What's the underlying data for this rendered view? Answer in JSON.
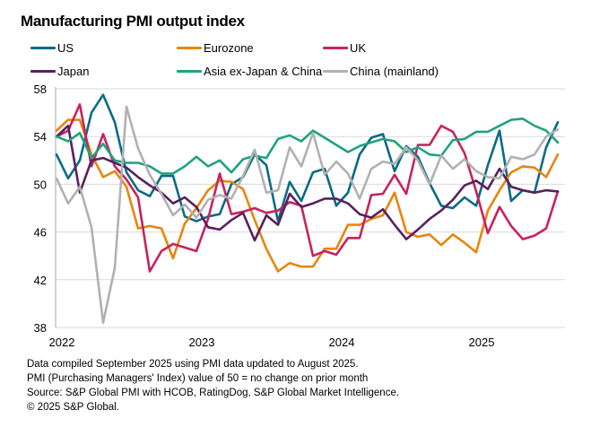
{
  "chart_data": {
    "type": "line",
    "title": "Manufacturing PMI output index",
    "xlabel": "",
    "ylabel": "",
    "ylim": [
      38,
      58
    ],
    "yticks": [
      38,
      42,
      46,
      50,
      54,
      58
    ],
    "xtick_labels": [
      "2022",
      "2023",
      "2024",
      "2025"
    ],
    "grid": true,
    "legend_position": "top",
    "x": [
      "2022-01",
      "2022-02",
      "2022-03",
      "2022-04",
      "2022-05",
      "2022-06",
      "2022-07",
      "2022-08",
      "2022-09",
      "2022-10",
      "2022-11",
      "2022-12",
      "2023-01",
      "2023-02",
      "2023-03",
      "2023-04",
      "2023-05",
      "2023-06",
      "2023-07",
      "2023-08",
      "2023-09",
      "2023-10",
      "2023-11",
      "2023-12",
      "2024-01",
      "2024-02",
      "2024-03",
      "2024-04",
      "2024-05",
      "2024-06",
      "2024-07",
      "2024-08",
      "2024-09",
      "2024-10",
      "2024-11",
      "2024-12",
      "2025-01",
      "2025-02",
      "2025-03",
      "2025-04",
      "2025-05",
      "2025-06",
      "2025-07",
      "2025-08"
    ],
    "series": [
      {
        "name": "US",
        "color": "#0a6b87",
        "values": [
          52.5,
          50.5,
          52.0,
          56.0,
          57.5,
          55.2,
          51.0,
          49.5,
          49.0,
          50.7,
          50.7,
          47.3,
          46.9,
          47.3,
          47.5,
          50.0,
          50.6,
          52.5,
          51.6,
          46.9,
          50.2,
          48.6,
          51.0,
          51.3,
          48.2,
          49.3,
          52.5,
          53.9,
          54.2,
          51.1,
          53.2,
          52.3,
          50.1,
          48.2,
          48.0,
          48.9,
          48.2,
          51.6,
          54.5,
          48.6,
          49.5,
          49.3,
          53.1,
          55.2
        ]
      },
      {
        "name": "Eurozone",
        "color": "#e8850d",
        "values": [
          54.5,
          55.4,
          55.4,
          52.5,
          50.6,
          51.1,
          49.8,
          46.3,
          46.5,
          46.3,
          43.8,
          46.7,
          48.0,
          49.5,
          50.3,
          50.2,
          49.6,
          47.0,
          44.6,
          42.7,
          43.4,
          43.1,
          43.1,
          44.6,
          44.6,
          46.6,
          46.6,
          47.1,
          47.4,
          49.3,
          46.0,
          45.6,
          45.8,
          44.9,
          45.8,
          45.1,
          44.3,
          47.8,
          49.5,
          51.0,
          51.5,
          51.4,
          50.6,
          52.5
        ]
      },
      {
        "name": "UK",
        "color": "#c6235e",
        "values": [
          54.0,
          54.5,
          56.7,
          51.5,
          54.2,
          51.5,
          50.4,
          48.9,
          42.7,
          44.4,
          45.0,
          44.7,
          44.4,
          47.1,
          50.9,
          47.5,
          47.7,
          48.0,
          47.6,
          47.8,
          48.5,
          48.2,
          44.0,
          44.4,
          44.1,
          45.5,
          45.5,
          49.1,
          49.2,
          50.8,
          49.2,
          53.3,
          53.3,
          54.9,
          54.4,
          52.6,
          49.4,
          45.9,
          48.1,
          46.5,
          45.4,
          45.7,
          46.3,
          49.4
        ]
      },
      {
        "name": "Japan",
        "color": "#5a1f5f",
        "values": [
          54.0,
          54.9,
          49.3,
          52.0,
          52.2,
          51.8,
          51.4,
          50.6,
          49.9,
          49.3,
          48.4,
          48.9,
          48.1,
          46.4,
          46.2,
          47.0,
          47.6,
          45.3,
          47.4,
          46.6,
          49.2,
          48.1,
          48.4,
          48.8,
          48.8,
          48.4,
          47.5,
          47.2,
          47.9,
          46.6,
          45.4,
          46.2,
          47.1,
          47.8,
          48.7,
          49.9,
          50.3,
          49.6,
          51.3,
          49.8,
          49.5,
          49.3,
          49.5,
          49.4
        ]
      },
      {
        "name": "Asia ex-Japan & China",
        "color": "#1fa37f",
        "values": [
          54.0,
          53.6,
          54.3,
          52.2,
          53.4,
          52.0,
          51.8,
          51.8,
          51.5,
          50.9,
          50.9,
          51.5,
          52.3,
          51.5,
          52.0,
          51.0,
          52.1,
          52.4,
          52.2,
          53.8,
          54.1,
          53.6,
          54.5,
          53.9,
          53.3,
          52.7,
          53.2,
          53.5,
          53.8,
          53.6,
          52.7,
          53.1,
          52.5,
          52.4,
          53.7,
          53.8,
          54.4,
          54.4,
          54.9,
          55.4,
          55.5,
          54.9,
          54.5,
          53.5
        ]
      },
      {
        "name": "China (mainland)",
        "color": "#b1b1b1",
        "values": [
          50.5,
          48.4,
          49.8,
          46.4,
          38.4,
          43.0,
          56.5,
          53.0,
          50.8,
          49.2,
          47.4,
          48.3,
          47.2,
          48.7,
          49.1,
          48.8,
          50.7,
          52.9,
          49.3,
          49.5,
          53.1,
          51.5,
          54.3,
          50.8,
          51.9,
          50.9,
          48.8,
          51.3,
          51.9,
          51.7,
          53.1,
          52.0,
          50.0,
          52.4,
          51.3,
          52.1,
          51.1,
          50.6,
          50.5,
          52.3,
          52.1,
          52.5,
          54.0,
          54.6
        ]
      }
    ]
  },
  "legend": [
    {
      "label": "US",
      "color": "#0a6b87"
    },
    {
      "label": "Eurozone",
      "color": "#e8850d"
    },
    {
      "label": "UK",
      "color": "#c6235e"
    },
    {
      "label": "Japan",
      "color": "#5a1f5f"
    },
    {
      "label": "Asia ex-Japan & China",
      "color": "#1fa37f"
    },
    {
      "label": "China (mainland)",
      "color": "#b1b1b1"
    }
  ],
  "footer": {
    "line1": "Data compiled September 2025 using PMI data updated to August 2025.",
    "line2": "PMI (Purchasing Managers' Index) value of 50 = no change on prior month",
    "line3": "Source: S&P Global PMI with HCOB, RatingDog, S&P Global Market Intelligence.",
    "line4": "© 2025 S&P Global."
  }
}
